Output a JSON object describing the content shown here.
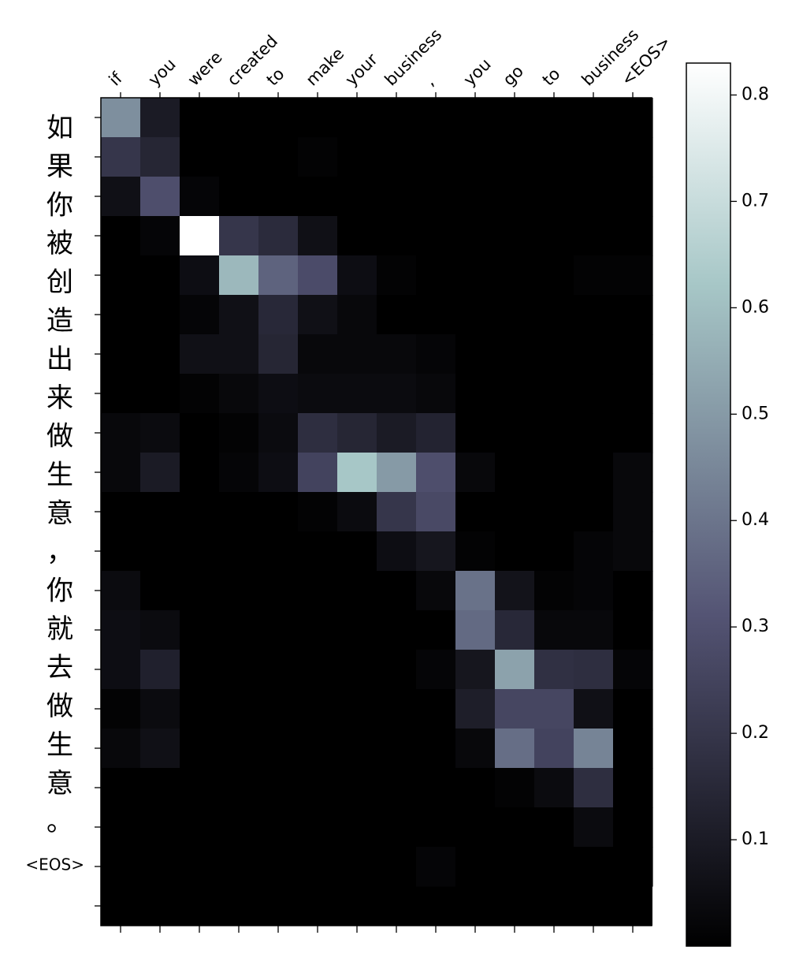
{
  "chart_data": {
    "type": "heatmap",
    "colormap": "bone",
    "x_tick_labels": [
      "if",
      "you",
      "were",
      "created",
      "to",
      "make",
      "your",
      "business",
      ",",
      "you",
      "go",
      "to",
      "business",
      "<EOS>"
    ],
    "y_tick_labels": [
      "如",
      "果",
      "你",
      "被",
      "创",
      "造",
      "出",
      "来",
      "做",
      "生",
      "意",
      "，",
      "你",
      "就",
      "去",
      "做",
      "生",
      "意",
      "。",
      "<EOS>"
    ],
    "values": [
      [
        0.47,
        0.1,
        0,
        0,
        0,
        0,
        0,
        0,
        0,
        0,
        0,
        0,
        0,
        0
      ],
      [
        0.2,
        0.14,
        0,
        0,
        0,
        0.01,
        0,
        0,
        0,
        0,
        0,
        0,
        0,
        0
      ],
      [
        0.06,
        0.29,
        0.02,
        0,
        0,
        0,
        0,
        0,
        0,
        0,
        0,
        0,
        0,
        0
      ],
      [
        0,
        0.02,
        0.83,
        0.2,
        0.16,
        0.06,
        0,
        0,
        0,
        0,
        0,
        0,
        0,
        0
      ],
      [
        0,
        0,
        0.05,
        0.58,
        0.35,
        0.28,
        0.05,
        0.01,
        0,
        0,
        0,
        0,
        0.01,
        0.01
      ],
      [
        0,
        0,
        0.02,
        0.06,
        0.15,
        0.06,
        0.03,
        0,
        0,
        0,
        0,
        0,
        0,
        0
      ],
      [
        0,
        0,
        0.06,
        0.06,
        0.14,
        0.03,
        0.03,
        0.03,
        0.02,
        0,
        0,
        0,
        0,
        0
      ],
      [
        0,
        0,
        0.01,
        0.03,
        0.05,
        0.04,
        0.04,
        0.04,
        0.03,
        0,
        0,
        0,
        0,
        0
      ],
      [
        0.03,
        0.04,
        0,
        0.01,
        0.04,
        0.17,
        0.14,
        0.1,
        0.13,
        0,
        0,
        0,
        0,
        0
      ],
      [
        0.03,
        0.1,
        0,
        0.02,
        0.05,
        0.25,
        0.62,
        0.5,
        0.29,
        0.03,
        0,
        0,
        0,
        0.03
      ],
      [
        0,
        0,
        0,
        0,
        0,
        0.01,
        0.04,
        0.2,
        0.27,
        0,
        0,
        0,
        0,
        0.03
      ],
      [
        0,
        0,
        0,
        0,
        0,
        0,
        0,
        0.05,
        0.08,
        0.01,
        0,
        0,
        0.02,
        0.03
      ],
      [
        0.04,
        0,
        0,
        0,
        0,
        0,
        0,
        0,
        0.03,
        0.39,
        0.07,
        0.01,
        0.02,
        0
      ],
      [
        0.05,
        0.04,
        0,
        0,
        0,
        0,
        0,
        0,
        0,
        0.37,
        0.15,
        0.03,
        0.03,
        0
      ],
      [
        0.05,
        0.12,
        0,
        0,
        0,
        0,
        0,
        0,
        0.02,
        0.08,
        0.52,
        0.18,
        0.17,
        0.02
      ],
      [
        0.01,
        0.04,
        0,
        0,
        0,
        0,
        0,
        0,
        0,
        0.11,
        0.26,
        0.26,
        0.06,
        0
      ],
      [
        0.03,
        0.06,
        0,
        0,
        0,
        0,
        0,
        0,
        0,
        0.03,
        0.38,
        0.25,
        0.44,
        0
      ],
      [
        0,
        0,
        0,
        0,
        0,
        0,
        0,
        0,
        0,
        0,
        0.01,
        0.04,
        0.17,
        0
      ],
      [
        0,
        0,
        0,
        0,
        0,
        0,
        0,
        0,
        0,
        0,
        0,
        0,
        0.04,
        0
      ],
      [
        0,
        0,
        0,
        0,
        0,
        0,
        0,
        0,
        0.02,
        0,
        0,
        0,
        0,
        0
      ]
    ],
    "colorbar": {
      "min": 0.0,
      "max": 0.83,
      "ticks": [
        0.1,
        0.2,
        0.3,
        0.4,
        0.5,
        0.6,
        0.7,
        0.8
      ],
      "tick_labels": [
        "0.1",
        "0.2",
        "0.3",
        "0.4",
        "0.5",
        "0.6",
        "0.7",
        "0.8"
      ]
    },
    "grid": false
  }
}
